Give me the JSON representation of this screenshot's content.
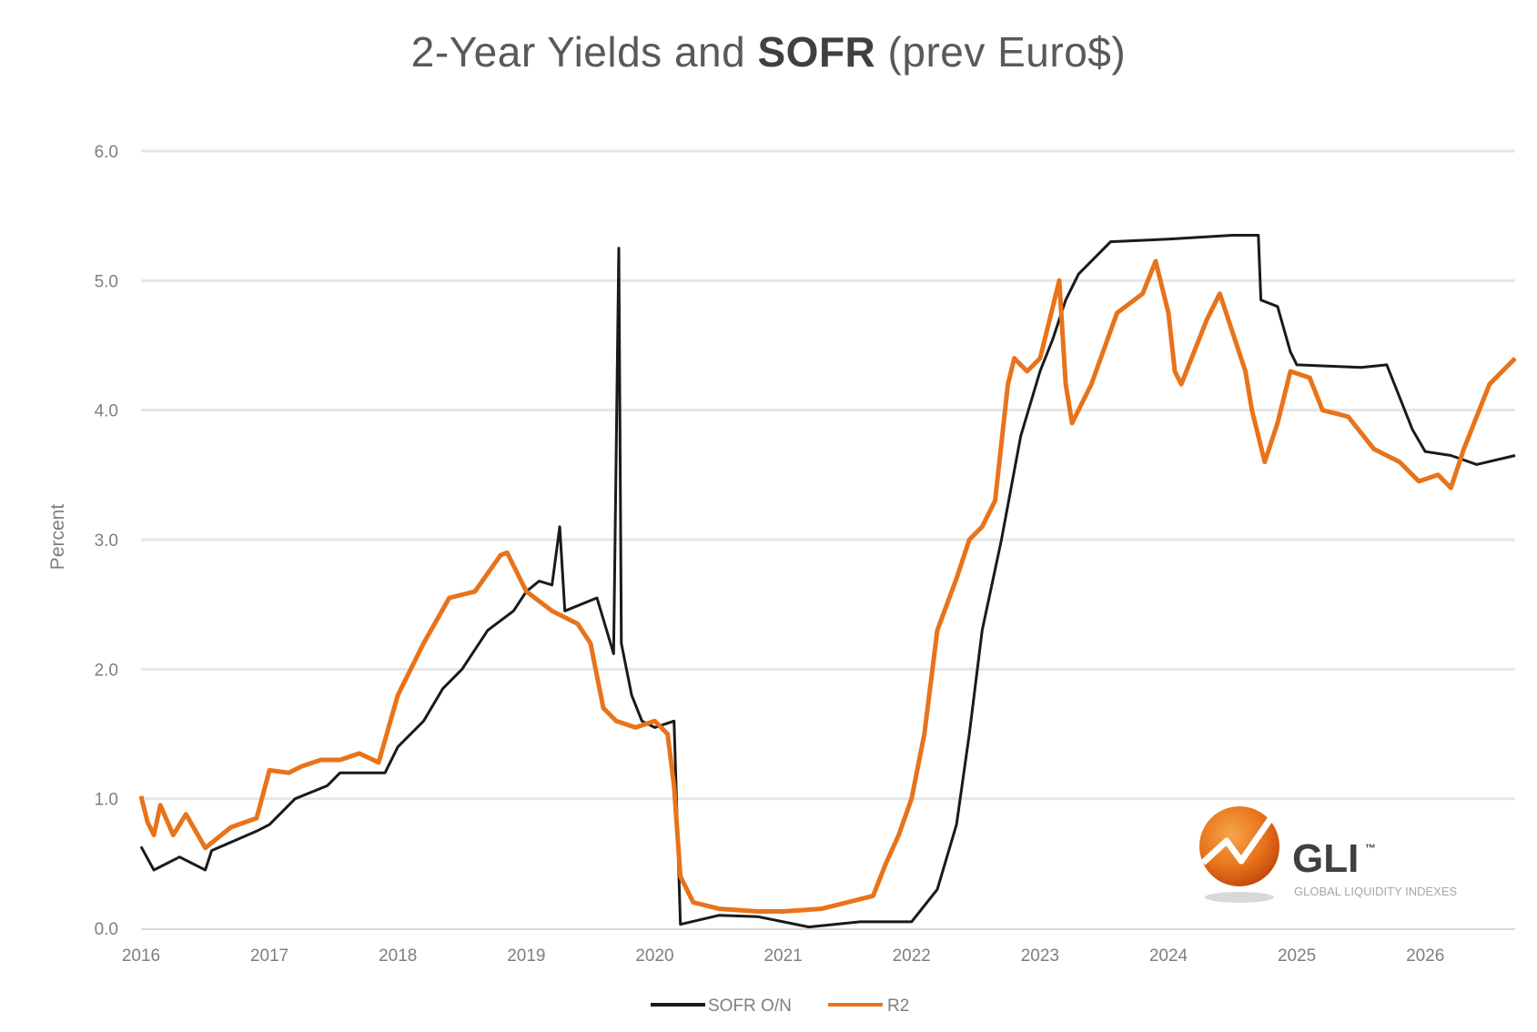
{
  "header": {
    "title_part1": "2-Year Yields and ",
    "title_bold": "SOFR",
    "title_part2": " (prev Euro$)"
  },
  "logo": {
    "name": "GLI",
    "trademark": "™",
    "subtitle": "GLOBAL LIQUIDITY INDEXES",
    "accent": "#e8731a"
  },
  "chart_data": {
    "type": "line",
    "title": "2-Year Yields and SOFR (prev Euro$)",
    "xlabel": "",
    "ylabel": "Percent",
    "xlim": [
      2016,
      2026.7
    ],
    "ylim": [
      0,
      6
    ],
    "x_ticks": [
      "2016",
      "2017",
      "2018",
      "2019",
      "2020",
      "2021",
      "2022",
      "2023",
      "2024",
      "2025",
      "2026"
    ],
    "y_ticks": [
      "0.0",
      "1.0",
      "2.0",
      "3.0",
      "4.0",
      "5.0",
      "6.0"
    ],
    "grid": "horizontal",
    "legend_position": "bottom",
    "series": [
      {
        "name": "SOFR O/N",
        "color": "#1a1a1a",
        "points": [
          [
            2016.0,
            0.63
          ],
          [
            2016.1,
            0.45
          ],
          [
            2016.3,
            0.55
          ],
          [
            2016.5,
            0.45
          ],
          [
            2016.55,
            0.6
          ],
          [
            2016.9,
            0.75
          ],
          [
            2017.0,
            0.8
          ],
          [
            2017.2,
            1.0
          ],
          [
            2017.45,
            1.1
          ],
          [
            2017.55,
            1.2
          ],
          [
            2017.9,
            1.2
          ],
          [
            2018.0,
            1.4
          ],
          [
            2018.2,
            1.6
          ],
          [
            2018.35,
            1.85
          ],
          [
            2018.5,
            2.0
          ],
          [
            2018.7,
            2.3
          ],
          [
            2018.9,
            2.45
          ],
          [
            2019.0,
            2.6
          ],
          [
            2019.1,
            2.68
          ],
          [
            2019.2,
            2.65
          ],
          [
            2019.26,
            3.1
          ],
          [
            2019.3,
            2.45
          ],
          [
            2019.55,
            2.55
          ],
          [
            2019.68,
            2.12
          ],
          [
            2019.72,
            5.25
          ],
          [
            2019.74,
            2.2
          ],
          [
            2019.82,
            1.8
          ],
          [
            2019.9,
            1.6
          ],
          [
            2020.0,
            1.55
          ],
          [
            2020.15,
            1.6
          ],
          [
            2020.2,
            0.03
          ],
          [
            2020.5,
            0.1
          ],
          [
            2020.8,
            0.09
          ],
          [
            2021.0,
            0.05
          ],
          [
            2021.2,
            0.01
          ],
          [
            2021.4,
            0.03
          ],
          [
            2021.6,
            0.05
          ],
          [
            2022.0,
            0.05
          ],
          [
            2022.2,
            0.3
          ],
          [
            2022.35,
            0.8
          ],
          [
            2022.45,
            1.5
          ],
          [
            2022.55,
            2.3
          ],
          [
            2022.7,
            3.0
          ],
          [
            2022.85,
            3.8
          ],
          [
            2023.0,
            4.3
          ],
          [
            2023.1,
            4.55
          ],
          [
            2023.2,
            4.85
          ],
          [
            2023.3,
            5.05
          ],
          [
            2023.55,
            5.3
          ],
          [
            2024.0,
            5.32
          ],
          [
            2024.5,
            5.35
          ],
          [
            2024.7,
            5.35
          ],
          [
            2024.72,
            4.85
          ],
          [
            2024.85,
            4.8
          ],
          [
            2024.95,
            4.45
          ],
          [
            2025.0,
            4.35
          ],
          [
            2025.5,
            4.33
          ],
          [
            2025.7,
            4.35
          ],
          [
            2025.8,
            4.1
          ],
          [
            2025.9,
            3.85
          ],
          [
            2026.0,
            3.68
          ],
          [
            2026.2,
            3.65
          ],
          [
            2026.4,
            3.58
          ],
          [
            2026.7,
            3.65
          ]
        ]
      },
      {
        "name": "R2",
        "color": "#e8731a",
        "points": [
          [
            2016.0,
            1.02
          ],
          [
            2016.05,
            0.82
          ],
          [
            2016.1,
            0.72
          ],
          [
            2016.15,
            0.95
          ],
          [
            2016.25,
            0.72
          ],
          [
            2016.35,
            0.88
          ],
          [
            2016.5,
            0.62
          ],
          [
            2016.7,
            0.78
          ],
          [
            2016.9,
            0.85
          ],
          [
            2017.0,
            1.22
          ],
          [
            2017.15,
            1.2
          ],
          [
            2017.25,
            1.25
          ],
          [
            2017.4,
            1.3
          ],
          [
            2017.55,
            1.3
          ],
          [
            2017.7,
            1.35
          ],
          [
            2017.85,
            1.28
          ],
          [
            2018.0,
            1.8
          ],
          [
            2018.2,
            2.2
          ],
          [
            2018.4,
            2.55
          ],
          [
            2018.6,
            2.6
          ],
          [
            2018.8,
            2.88
          ],
          [
            2018.85,
            2.9
          ],
          [
            2019.0,
            2.6
          ],
          [
            2019.2,
            2.45
          ],
          [
            2019.4,
            2.35
          ],
          [
            2019.5,
            2.2
          ],
          [
            2019.6,
            1.7
          ],
          [
            2019.7,
            1.6
          ],
          [
            2019.85,
            1.55
          ],
          [
            2020.0,
            1.6
          ],
          [
            2020.1,
            1.5
          ],
          [
            2020.15,
            1.1
          ],
          [
            2020.2,
            0.4
          ],
          [
            2020.3,
            0.2
          ],
          [
            2020.5,
            0.15
          ],
          [
            2020.8,
            0.13
          ],
          [
            2021.0,
            0.13
          ],
          [
            2021.3,
            0.15
          ],
          [
            2021.5,
            0.2
          ],
          [
            2021.7,
            0.25
          ],
          [
            2021.8,
            0.5
          ],
          [
            2021.9,
            0.72
          ],
          [
            2022.0,
            1.0
          ],
          [
            2022.1,
            1.5
          ],
          [
            2022.2,
            2.3
          ],
          [
            2022.35,
            2.7
          ],
          [
            2022.45,
            3.0
          ],
          [
            2022.55,
            3.1
          ],
          [
            2022.65,
            3.3
          ],
          [
            2022.75,
            4.2
          ],
          [
            2022.8,
            4.4
          ],
          [
            2022.9,
            4.3
          ],
          [
            2023.0,
            4.4
          ],
          [
            2023.1,
            4.8
          ],
          [
            2023.15,
            5.0
          ],
          [
            2023.2,
            4.2
          ],
          [
            2023.25,
            3.9
          ],
          [
            2023.4,
            4.2
          ],
          [
            2023.6,
            4.75
          ],
          [
            2023.8,
            4.9
          ],
          [
            2023.9,
            5.15
          ],
          [
            2024.0,
            4.75
          ],
          [
            2024.05,
            4.3
          ],
          [
            2024.1,
            4.2
          ],
          [
            2024.3,
            4.7
          ],
          [
            2024.4,
            4.9
          ],
          [
            2024.5,
            4.6
          ],
          [
            2024.6,
            4.3
          ],
          [
            2024.65,
            4.0
          ],
          [
            2024.75,
            3.6
          ],
          [
            2024.85,
            3.9
          ],
          [
            2024.95,
            4.3
          ],
          [
            2025.1,
            4.25
          ],
          [
            2025.2,
            4.0
          ],
          [
            2025.4,
            3.95
          ],
          [
            2025.6,
            3.7
          ],
          [
            2025.8,
            3.6
          ],
          [
            2025.95,
            3.45
          ],
          [
            2026.1,
            3.5
          ],
          [
            2026.2,
            3.4
          ],
          [
            2026.3,
            3.7
          ],
          [
            2026.5,
            4.2
          ],
          [
            2026.7,
            4.4
          ]
        ]
      }
    ]
  }
}
